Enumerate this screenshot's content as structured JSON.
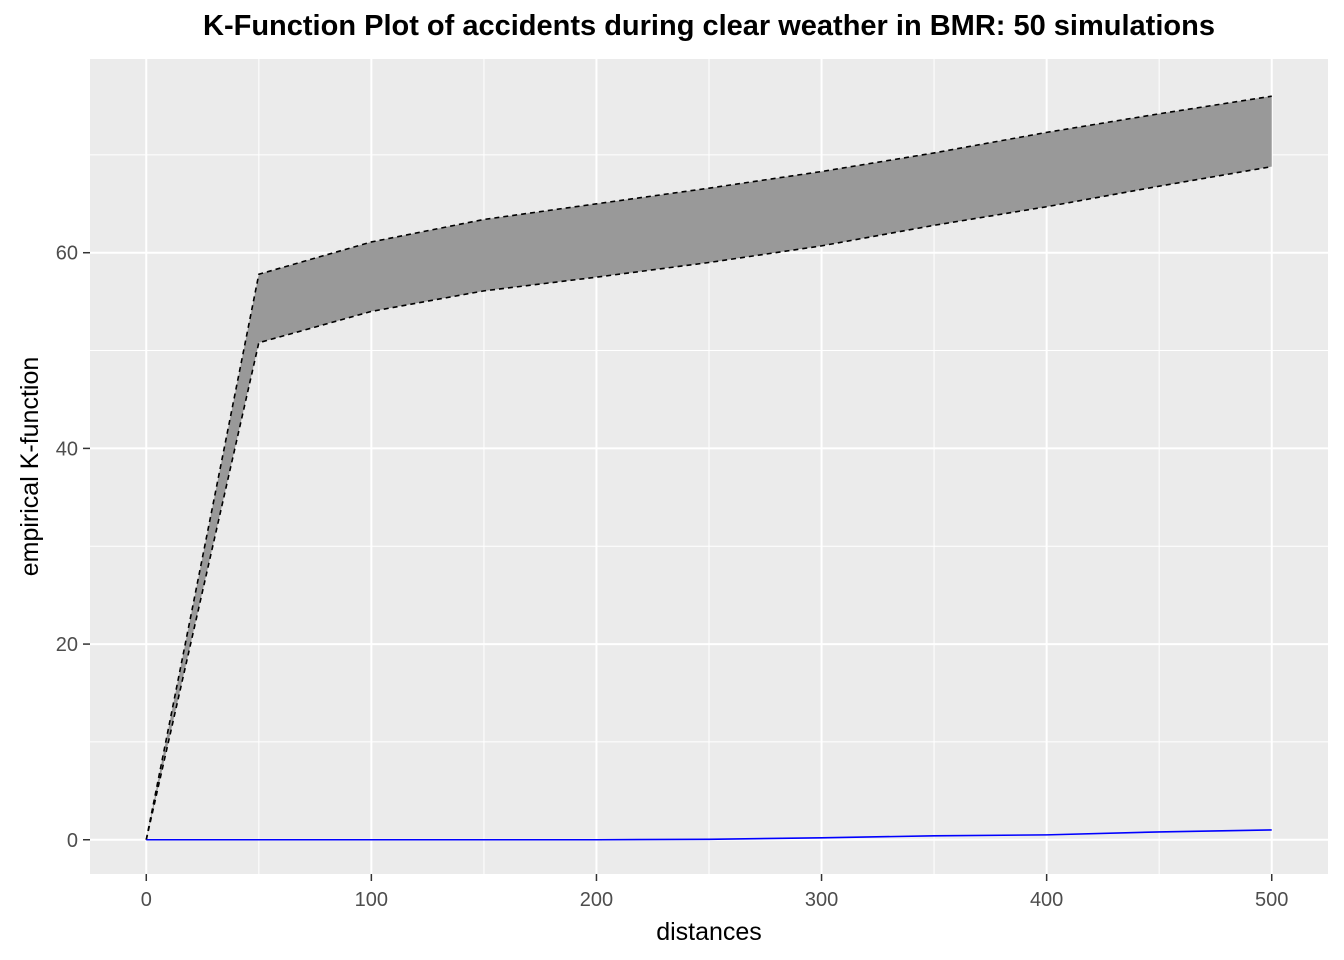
{
  "chart_data": {
    "type": "line",
    "title": "K-Function Plot of accidents during clear weather in BMR: 50 simulations",
    "xlabel": "distances",
    "ylabel": "empirical K-function",
    "xlim": [
      -25,
      525
    ],
    "ylim": [
      -3.5,
      79.8
    ],
    "x_ticks": [
      0,
      100,
      200,
      300,
      400,
      500
    ],
    "x_tick_labels": [
      "0",
      "100",
      "200",
      "300",
      "400",
      "500"
    ],
    "y_ticks": [
      0,
      20,
      40,
      60
    ],
    "y_tick_labels": [
      "0",
      "20",
      "40",
      "60"
    ],
    "grid": true,
    "legend": "none",
    "x": [
      0,
      50,
      100,
      150,
      200,
      250,
      300,
      350,
      400,
      450,
      500
    ],
    "series": [
      {
        "role": "envelope-upper",
        "style": "dashed",
        "color": "#000000",
        "values": [
          0,
          57.8,
          61.1,
          63.4,
          65.0,
          66.6,
          68.3,
          70.2,
          72.3,
          74.2,
          76.0
        ]
      },
      {
        "role": "envelope-lower",
        "style": "dashed",
        "color": "#000000",
        "values": [
          0,
          50.8,
          54.0,
          56.1,
          57.5,
          59.0,
          60.7,
          62.8,
          64.7,
          66.8,
          68.8
        ]
      },
      {
        "role": "observed",
        "style": "solid",
        "color": "#0000ff",
        "values": [
          0,
          0,
          0,
          0,
          0,
          0.05,
          0.2,
          0.4,
          0.5,
          0.8,
          1.0
        ]
      }
    ],
    "envelope_fill": "#999999",
    "panel_background": "#ebebeb",
    "grid_color": "#ffffff"
  }
}
